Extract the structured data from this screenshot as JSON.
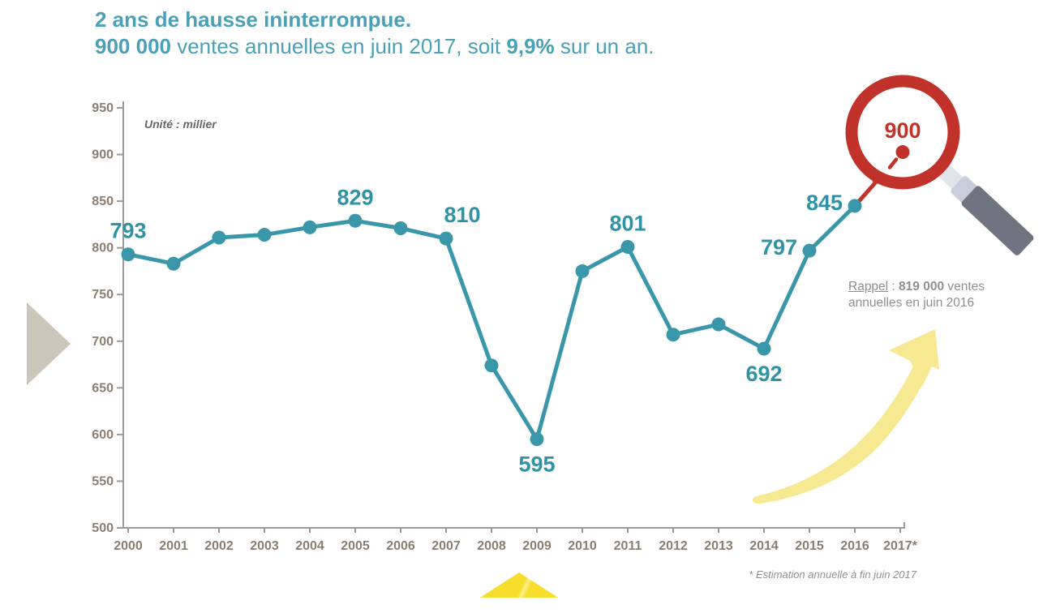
{
  "header": {
    "line1": "2 ans de hausse ininterrompue.",
    "line2_bold1": "900 000",
    "line2_mid": " ventes annuelles en juin 2017, soit ",
    "line2_bold2": "9,9%",
    "line2_end": " sur un an."
  },
  "chart_data": {
    "type": "line",
    "title": "2 ans de hausse ininterrompue. 900 000 ventes annuelles en juin 2017, soit 9,9% sur un an.",
    "unit_label": "Unité : millier",
    "ylabel": "",
    "xlabel": "",
    "ylim": [
      500,
      950
    ],
    "ytick_step": 50,
    "yticks": [
      500,
      550,
      600,
      650,
      700,
      750,
      800,
      850,
      900,
      950
    ],
    "grid": false,
    "legend": false,
    "categories": [
      "2000",
      "2001",
      "2002",
      "2003",
      "2004",
      "2005",
      "2006",
      "2007",
      "2008",
      "2009",
      "2010",
      "2011",
      "2012",
      "2013",
      "2014",
      "2015",
      "2016",
      "2017*"
    ],
    "series": [
      {
        "name": "Ventes annuelles (milliers)",
        "values": [
          793,
          783,
          811,
          814,
          822,
          829,
          821,
          810,
          674,
          595,
          775,
          801,
          707,
          718,
          692,
          797,
          845,
          900
        ]
      }
    ],
    "points": [
      {
        "year": "2000",
        "value": 793,
        "label": "793",
        "pos": "above"
      },
      {
        "year": "2001",
        "value": 783,
        "label": null
      },
      {
        "year": "2002",
        "value": 811,
        "label": null
      },
      {
        "year": "2003",
        "value": 814,
        "label": null
      },
      {
        "year": "2004",
        "value": 822,
        "label": null
      },
      {
        "year": "2005",
        "value": 829,
        "label": "829",
        "pos": "above"
      },
      {
        "year": "2006",
        "value": 821,
        "label": null
      },
      {
        "year": "2007",
        "value": 810,
        "label": "810",
        "pos": "above-right"
      },
      {
        "year": "2008",
        "value": 674,
        "label": null
      },
      {
        "year": "2009",
        "value": 595,
        "label": "595",
        "pos": "below"
      },
      {
        "year": "2010",
        "value": 775,
        "label": null
      },
      {
        "year": "2011",
        "value": 801,
        "label": "801",
        "pos": "above"
      },
      {
        "year": "2012",
        "value": 707,
        "label": null
      },
      {
        "year": "2013",
        "value": 718,
        "label": null
      },
      {
        "year": "2014",
        "value": 692,
        "label": "692",
        "pos": "below"
      },
      {
        "year": "2015",
        "value": 797,
        "label": "797",
        "pos": "left"
      },
      {
        "year": "2016",
        "value": 845,
        "label": "845",
        "pos": "left"
      },
      {
        "year": "2017*",
        "value": 900,
        "label": "900",
        "pos": "magnifier",
        "highlight": true
      }
    ]
  },
  "annotations": {
    "rappel_label": "Rappel",
    "rappel_sep": " : ",
    "rappel_value": "819 000",
    "rappel_rest": " ventes annuelles en juin 2016",
    "footnote": "* Estimation annuelle à fin juin 2017",
    "magnifier_value": "900"
  },
  "icons": {
    "magnifier": "magnifier-icon",
    "arrow": "upward-brush-arrow-icon",
    "triangle": "right-pointing-triangle-icon"
  },
  "colors": {
    "teal_line": "#3a97a9",
    "title_teal": "#4aa0b6",
    "label_teal": "#3093a5",
    "red": "#c0322a",
    "axis_text": "#8b7e70",
    "axis_line": "#9a9a9a",
    "gray_text": "#8f8f8f",
    "unit_text": "#666666",
    "triangle": "#cbc6ba",
    "arrow_yellow": "#f6e992",
    "bottom_yellow": "#f7de2d",
    "handle_dark": "#6f7480",
    "handle_light": "#dfe3ea",
    "handle_mid": "#c8ced9"
  }
}
